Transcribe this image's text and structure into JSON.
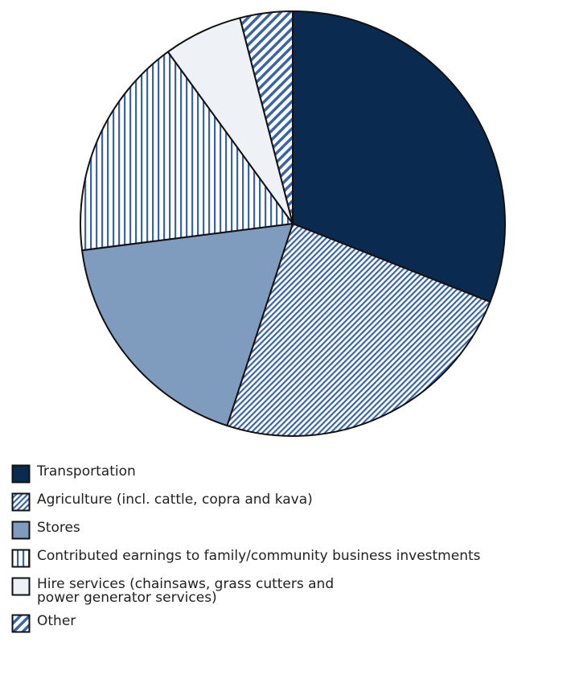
{
  "chart_data": {
    "type": "pie",
    "categories": [
      "Transportation",
      "Agriculture (incl. cattle, copra and kava)",
      "Stores",
      "Contributed earnings to family/community business investments",
      "Hire services (chainsaws, grass cutters and\npower generator services)",
      "Other"
    ],
    "values": [
      31,
      24,
      18,
      17,
      6,
      4
    ],
    "colors": [
      "#0b2a50",
      "#3a64a8",
      "#7f9bbd",
      "#3a64a8",
      "#eef2f6",
      "#3a64a8"
    ],
    "patterns": [
      "solid",
      "diagonal",
      "solid",
      "vertical",
      "solid",
      "diagonal-wide"
    ]
  }
}
